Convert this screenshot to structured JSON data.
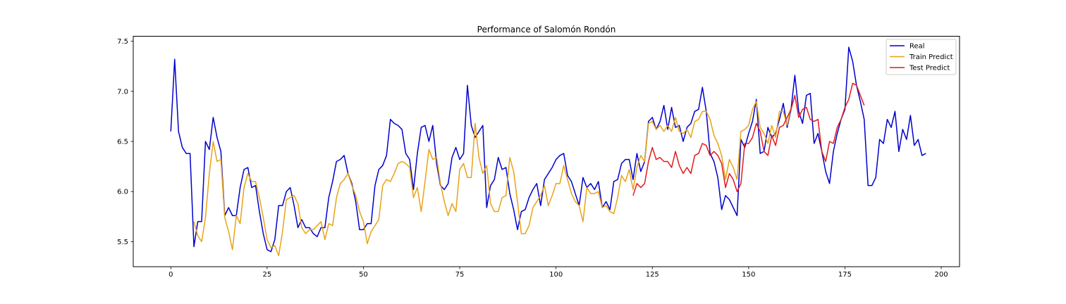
{
  "chart_data": {
    "type": "line",
    "title": "Performance of Salomón Rondón",
    "xlabel": "",
    "ylabel": "",
    "xlim": [
      -9.75,
      204.75
    ],
    "ylim": [
      5.25,
      7.55
    ],
    "xticks": [
      0,
      25,
      50,
      75,
      100,
      125,
      150,
      175,
      200
    ],
    "yticks": [
      5.5,
      6.0,
      6.5,
      7.0,
      7.5
    ],
    "xtick_labels": [
      "0",
      "25",
      "50",
      "75",
      "100",
      "125",
      "150",
      "175",
      "200"
    ],
    "ytick_labels": [
      "5.5",
      "6.0",
      "6.5",
      "7.0",
      "7.5"
    ],
    "grid": false,
    "legend_position": "top-right",
    "series": [
      {
        "name": "Real",
        "color": "#0000cd",
        "start_x": 0,
        "values": [
          6.6,
          7.32,
          6.6,
          6.44,
          6.38,
          6.38,
          5.45,
          5.7,
          5.7,
          6.5,
          6.42,
          6.74,
          6.54,
          6.4,
          5.76,
          5.84,
          5.76,
          5.76,
          6.04,
          6.22,
          6.24,
          6.04,
          6.06,
          5.8,
          5.58,
          5.42,
          5.4,
          5.52,
          5.86,
          5.86,
          6.0,
          6.04,
          5.86,
          5.64,
          5.72,
          5.64,
          5.64,
          5.58,
          5.55,
          5.64,
          5.64,
          5.94,
          6.1,
          6.3,
          6.32,
          6.36,
          6.18,
          6.08,
          5.9,
          5.62,
          5.62,
          5.68,
          5.68,
          6.06,
          6.22,
          6.26,
          6.36,
          6.72,
          6.68,
          6.66,
          6.62,
          6.38,
          6.32,
          6.02,
          6.38,
          6.64,
          6.66,
          6.5,
          6.66,
          6.28,
          6.06,
          6.02,
          6.08,
          6.34,
          6.44,
          6.32,
          6.38,
          7.06,
          6.66,
          6.54,
          6.6,
          6.66,
          5.84,
          6.06,
          6.12,
          6.34,
          6.22,
          6.24,
          5.98,
          5.82,
          5.62,
          5.8,
          5.82,
          5.94,
          6.02,
          6.08,
          5.86,
          6.12,
          6.18,
          6.24,
          6.32,
          6.36,
          6.38,
          6.16,
          6.1,
          5.98,
          5.86,
          6.14,
          6.04,
          6.08,
          6.02,
          6.1,
          5.84,
          5.9,
          5.82,
          6.1,
          6.12,
          6.28,
          6.32,
          6.32,
          6.12,
          6.38,
          6.2,
          6.3,
          6.7,
          6.74,
          6.62,
          6.7,
          6.86,
          6.62,
          6.84,
          6.64,
          6.66,
          6.5,
          6.64,
          6.68,
          6.8,
          6.82,
          7.04,
          6.8,
          6.38,
          6.3,
          6.14,
          5.82,
          5.96,
          5.92,
          5.84,
          5.76,
          6.52,
          6.44,
          6.58,
          6.7,
          6.92,
          6.38,
          6.4,
          6.64,
          6.54,
          6.58,
          6.72,
          6.88,
          6.64,
          6.82,
          7.16,
          6.8,
          6.68,
          6.96,
          6.98,
          6.48,
          6.58,
          6.4,
          6.2,
          6.08,
          6.4,
          6.58,
          6.72,
          6.82,
          7.44,
          7.3,
          7.06,
          6.9,
          6.72,
          6.06,
          6.06,
          6.14,
          6.52,
          6.48,
          6.72,
          6.64,
          6.8,
          6.4,
          6.62,
          6.52,
          6.76,
          6.46,
          6.52,
          6.36,
          6.38
        ]
      },
      {
        "name": "Train Predict",
        "color": "#e8a317",
        "start_x": 6,
        "values": [
          5.7,
          5.56,
          5.5,
          5.74,
          6.18,
          6.5,
          6.3,
          6.32,
          5.74,
          5.6,
          5.42,
          5.76,
          5.68,
          6.04,
          6.18,
          6.1,
          6.1,
          5.94,
          5.74,
          5.52,
          5.44,
          5.46,
          5.36,
          5.6,
          5.92,
          5.94,
          5.96,
          5.88,
          5.64,
          5.58,
          5.62,
          5.62,
          5.66,
          5.7,
          5.52,
          5.68,
          5.66,
          5.94,
          6.08,
          6.12,
          6.18,
          6.06,
          5.96,
          5.8,
          5.7,
          5.48,
          5.6,
          5.66,
          5.72,
          6.06,
          6.12,
          6.1,
          6.18,
          6.28,
          6.3,
          6.28,
          6.24,
          5.94,
          6.04,
          5.8,
          6.1,
          6.42,
          6.32,
          6.34,
          6.08,
          5.9,
          5.76,
          5.88,
          5.8,
          6.22,
          6.28,
          6.14,
          6.14,
          6.68,
          6.34,
          6.18,
          6.26,
          5.88,
          5.8,
          5.8,
          5.94,
          5.96,
          6.34,
          6.2,
          5.9,
          5.58,
          5.58,
          5.66,
          5.84,
          5.9,
          5.96,
          6.06,
          5.86,
          5.96,
          6.08,
          6.08,
          6.26,
          6.12,
          5.98,
          5.9,
          5.86,
          5.7,
          6.04,
          5.98,
          5.98,
          6.0,
          5.84,
          5.86,
          5.8,
          5.78,
          5.94,
          6.16,
          6.1,
          6.22,
          6.02,
          6.24,
          6.36,
          6.3,
          6.68,
          6.7,
          6.62,
          6.66,
          6.6,
          6.66,
          6.6,
          6.74,
          6.6,
          6.58,
          6.62,
          6.54,
          6.7,
          6.72,
          6.8,
          6.8,
          6.72,
          6.56,
          6.48,
          6.36,
          6.12,
          6.32,
          6.24,
          6.12,
          6.6,
          6.62,
          6.66,
          6.82,
          6.9,
          6.64,
          6.58,
          6.48,
          6.66,
          6.54,
          6.8,
          6.8,
          6.66,
          6.84
        ]
      },
      {
        "name": "Test Predict",
        "color": "#e31a1c",
        "start_x": 120,
        "values": [
          5.96,
          6.08,
          6.04,
          6.08,
          6.3,
          6.44,
          6.32,
          6.34,
          6.3,
          6.3,
          6.24,
          6.4,
          6.26,
          6.18,
          6.24,
          6.18,
          6.36,
          6.38,
          6.48,
          6.46,
          6.36,
          6.4,
          6.36,
          6.28,
          6.04,
          6.18,
          6.12,
          6.0,
          6.08,
          6.48,
          6.48,
          6.54,
          6.68,
          6.6,
          6.4,
          6.36,
          6.56,
          6.46,
          6.64,
          6.66,
          6.74,
          6.82,
          6.96,
          6.74,
          6.82,
          6.84,
          6.72,
          6.7,
          6.72,
          6.4,
          6.3,
          6.5,
          6.48,
          6.64,
          6.72,
          6.84,
          6.92,
          7.08,
          7.06,
          6.96,
          6.86
        ]
      }
    ]
  }
}
